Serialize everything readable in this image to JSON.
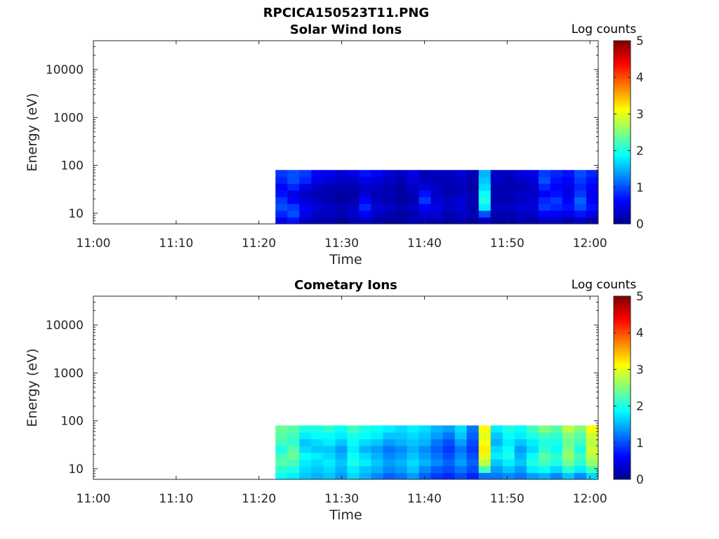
{
  "figure_title": "RPCICA150523T11.PNG",
  "colormap": [
    "#00008f",
    "#0000ff",
    "#0080ff",
    "#00ffff",
    "#80ff80",
    "#ffff00",
    "#ff8000",
    "#ff0000",
    "#800000"
  ],
  "chart_data": [
    {
      "type": "heatmap",
      "title": "Solar Wind Ions",
      "xlabel": "Time",
      "ylabel": "Energy (eV)",
      "yscale": "log",
      "ylim": [
        6,
        40000
      ],
      "xlim": [
        "11:00",
        "12:01"
      ],
      "xticks": [
        "11:00",
        "11:10",
        "11:20",
        "11:30",
        "11:40",
        "11:50",
        "12:00"
      ],
      "yticks": [
        "10",
        "100",
        "1000",
        "10000"
      ],
      "colorbar": {
        "label": "Log counts",
        "min": 0,
        "max": 5,
        "ticks": [
          "0",
          "1",
          "2",
          "3",
          "4",
          "5"
        ]
      },
      "data_start": "11:22",
      "data_end": "12:01",
      "energy_range": [
        6,
        80
      ],
      "column_minutes": 1.5,
      "columns": [
        [
          0.5,
          0.8,
          1.0,
          0.9,
          0.7,
          0.6,
          0.8,
          0.9
        ],
        [
          0.7,
          1.0,
          0.9,
          0.6,
          0.5,
          0.8,
          1.0,
          1.0
        ],
        [
          0.3,
          0.5,
          0.6,
          0.4,
          0.3,
          0.5,
          0.8,
          0.9
        ],
        [
          0.2,
          0.3,
          0.4,
          0.3,
          0.2,
          0.3,
          0.5,
          0.6
        ],
        [
          0.2,
          0.3,
          0.3,
          0.2,
          0.2,
          0.2,
          0.4,
          0.5
        ],
        [
          0.1,
          0.2,
          0.2,
          0.1,
          0.1,
          0.2,
          0.3,
          0.4
        ],
        [
          0.2,
          0.3,
          0.3,
          0.2,
          0.1,
          0.2,
          0.3,
          0.5
        ],
        [
          0.3,
          0.6,
          0.8,
          0.6,
          0.4,
          0.3,
          0.5,
          0.7
        ],
        [
          0.2,
          0.3,
          0.4,
          0.3,
          0.2,
          0.3,
          0.4,
          0.6
        ],
        [
          0.1,
          0.2,
          0.3,
          0.2,
          0.2,
          0.2,
          0.3,
          0.4
        ],
        [
          0.1,
          0.1,
          0.2,
          0.1,
          0.1,
          0.1,
          0.2,
          0.3
        ],
        [
          0.2,
          0.2,
          0.3,
          0.2,
          0.2,
          0.3,
          0.4,
          0.5
        ],
        [
          0.2,
          0.4,
          0.6,
          0.9,
          0.7,
          0.4,
          0.3,
          0.2
        ],
        [
          0.2,
          0.4,
          0.5,
          0.4,
          0.3,
          0.3,
          0.2,
          0.3
        ],
        [
          0.1,
          0.2,
          0.3,
          0.3,
          0.2,
          0.2,
          0.2,
          0.3
        ],
        [
          0.2,
          0.3,
          0.4,
          0.4,
          0.3,
          0.2,
          0.3,
          0.4
        ],
        [
          0.1,
          0.2,
          0.2,
          0.2,
          0.2,
          0.1,
          0.2,
          0.2
        ],
        [
          0.3,
          1.0,
          1.8,
          2.0,
          1.9,
          1.7,
          1.6,
          1.5
        ],
        [
          0.1,
          0.2,
          0.3,
          0.2,
          0.2,
          0.2,
          0.3,
          0.3
        ],
        [
          0.1,
          0.2,
          0.3,
          0.2,
          0.2,
          0.2,
          0.2,
          0.3
        ],
        [
          0.2,
          0.3,
          0.4,
          0.3,
          0.3,
          0.2,
          0.3,
          0.4
        ],
        [
          0.2,
          0.3,
          0.4,
          0.4,
          0.3,
          0.3,
          0.4,
          0.5
        ],
        [
          0.3,
          0.6,
          0.9,
          0.8,
          0.6,
          0.8,
          1.0,
          0.9
        ],
        [
          0.3,
          0.6,
          0.8,
          0.9,
          0.7,
          0.6,
          0.7,
          0.8
        ],
        [
          0.2,
          0.5,
          0.7,
          0.6,
          0.5,
          0.5,
          0.6,
          0.7
        ],
        [
          0.3,
          0.7,
          1.0,
          1.1,
          0.9,
          0.8,
          0.9,
          1.0
        ],
        [
          0.2,
          0.5,
          0.7,
          0.6,
          0.5,
          0.6,
          0.7,
          0.8
        ]
      ]
    },
    {
      "type": "heatmap",
      "title": "Cometary Ions",
      "xlabel": "Time",
      "ylabel": "Energy (eV)",
      "yscale": "log",
      "ylim": [
        6,
        40000
      ],
      "xlim": [
        "11:00",
        "12:01"
      ],
      "xticks": [
        "11:00",
        "11:10",
        "11:20",
        "11:30",
        "11:40",
        "11:50",
        "12:00"
      ],
      "yticks": [
        "10",
        "100",
        "1000",
        "10000"
      ],
      "colorbar": {
        "label": "Log counts",
        "min": 0,
        "max": 5,
        "ticks": [
          "0",
          "1",
          "2",
          "3",
          "4",
          "5"
        ]
      },
      "data_start": "11:22",
      "data_end": "12:01",
      "energy_range": [
        6,
        80
      ],
      "column_minutes": 1.5,
      "columns": [
        [
          1.9,
          2.1,
          2.3,
          2.2,
          2.0,
          2.2,
          2.3,
          2.4
        ],
        [
          1.8,
          2.0,
          2.2,
          2.4,
          2.3,
          2.1,
          2.2,
          2.3
        ],
        [
          1.6,
          1.7,
          1.8,
          1.9,
          1.7,
          1.6,
          1.8,
          2.0
        ],
        [
          1.5,
          1.6,
          1.7,
          1.8,
          1.6,
          1.7,
          1.9,
          2.0
        ],
        [
          1.6,
          1.7,
          1.8,
          1.7,
          1.6,
          1.8,
          1.9,
          2.1
        ],
        [
          1.4,
          1.5,
          1.6,
          1.5,
          1.4,
          1.6,
          1.8,
          1.9
        ],
        [
          1.7,
          1.8,
          2.0,
          1.9,
          1.8,
          1.9,
          2.0,
          2.2
        ],
        [
          1.5,
          1.6,
          1.8,
          1.7,
          1.5,
          1.7,
          1.9,
          2.0
        ],
        [
          1.3,
          1.5,
          1.6,
          1.5,
          1.4,
          1.6,
          1.8,
          1.9
        ],
        [
          1.1,
          1.3,
          1.4,
          1.3,
          1.2,
          1.4,
          1.6,
          1.8
        ],
        [
          1.2,
          1.4,
          1.5,
          1.4,
          1.3,
          1.5,
          1.6,
          1.7
        ],
        [
          1.4,
          1.6,
          1.7,
          1.6,
          1.5,
          1.6,
          1.7,
          1.8
        ],
        [
          1.1,
          1.3,
          1.5,
          1.4,
          1.3,
          1.5,
          1.6,
          1.7
        ],
        [
          0.9,
          1.1,
          1.3,
          1.2,
          1.1,
          1.2,
          1.4,
          1.5
        ],
        [
          0.8,
          1.0,
          1.1,
          1.0,
          0.9,
          1.0,
          1.2,
          1.4
        ],
        [
          1.0,
          1.2,
          1.4,
          1.3,
          1.2,
          1.4,
          1.6,
          1.7
        ],
        [
          0.8,
          1.0,
          1.1,
          1.0,
          0.9,
          1.0,
          1.1,
          1.2
        ],
        [
          1.2,
          2.2,
          2.8,
          3.0,
          3.2,
          3.1,
          3.0,
          3.1
        ],
        [
          1.2,
          1.4,
          1.6,
          1.8,
          1.7,
          1.5,
          1.6,
          1.8
        ],
        [
          1.3,
          1.6,
          1.8,
          2.0,
          1.9,
          1.8,
          1.9,
          2.0
        ],
        [
          1.2,
          1.4,
          1.6,
          1.5,
          1.4,
          1.6,
          1.8,
          1.9
        ],
        [
          1.4,
          1.8,
          2.0,
          1.9,
          1.7,
          1.8,
          2.0,
          2.2
        ],
        [
          1.5,
          1.9,
          2.2,
          2.3,
          2.1,
          2.0,
          2.2,
          2.5
        ],
        [
          1.3,
          1.7,
          2.0,
          2.1,
          1.9,
          2.0,
          2.1,
          2.3
        ],
        [
          1.6,
          2.1,
          2.4,
          2.6,
          2.5,
          2.4,
          2.5,
          2.8
        ],
        [
          1.3,
          1.8,
          2.1,
          2.2,
          2.0,
          2.2,
          2.3,
          2.5
        ],
        [
          1.7,
          2.2,
          2.6,
          2.8,
          2.9,
          2.8,
          2.9,
          3.1
        ]
      ]
    }
  ]
}
